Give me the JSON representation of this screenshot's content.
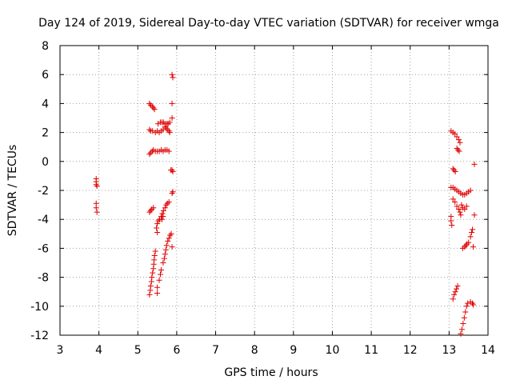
{
  "chart_data": {
    "type": "scatter",
    "title": "Day 124 of 2019, Sidereal Day-to-day VTEC variation (SDTVAR) for receiver wmga",
    "xlabel": "GPS time / hours",
    "ylabel": "SDTVAR / TECUs",
    "xlim": [
      3,
      14
    ],
    "ylim": [
      -12,
      8
    ],
    "xticks": [
      3,
      4,
      5,
      6,
      7,
      8,
      9,
      10,
      11,
      12,
      13,
      14
    ],
    "yticks": [
      -12,
      -10,
      -8,
      -6,
      -4,
      -2,
      0,
      2,
      4,
      6,
      8
    ],
    "grid": true,
    "marker": "plus",
    "color": "#e00000",
    "series": [
      {
        "name": "SDTVAR",
        "points": [
          [
            3.93,
            -1.2
          ],
          [
            3.93,
            -1.4
          ],
          [
            3.93,
            -1.6
          ],
          [
            3.95,
            -1.7
          ],
          [
            3.93,
            -2.9
          ],
          [
            3.93,
            -3.2
          ],
          [
            3.95,
            -3.5
          ],
          [
            5.3,
            4.0
          ],
          [
            5.33,
            3.9
          ],
          [
            5.37,
            3.8
          ],
          [
            5.4,
            3.7
          ],
          [
            5.43,
            3.6
          ],
          [
            5.3,
            2.2
          ],
          [
            5.33,
            2.1
          ],
          [
            5.38,
            2.1
          ],
          [
            5.45,
            2.0
          ],
          [
            5.5,
            2.1
          ],
          [
            5.55,
            2.0
          ],
          [
            5.6,
            2.1
          ],
          [
            5.65,
            2.2
          ],
          [
            5.52,
            2.6
          ],
          [
            5.58,
            2.7
          ],
          [
            5.62,
            2.7
          ],
          [
            5.66,
            2.7
          ],
          [
            5.7,
            2.6
          ],
          [
            5.75,
            2.6
          ],
          [
            5.78,
            2.6
          ],
          [
            5.82,
            2.7
          ],
          [
            5.7,
            2.4
          ],
          [
            5.73,
            2.3
          ],
          [
            5.76,
            2.2
          ],
          [
            5.8,
            2.1
          ],
          [
            5.82,
            2.0
          ],
          [
            5.3,
            0.5
          ],
          [
            5.33,
            0.6
          ],
          [
            5.37,
            0.7
          ],
          [
            5.4,
            0.8
          ],
          [
            5.45,
            0.7
          ],
          [
            5.5,
            0.7
          ],
          [
            5.55,
            0.7
          ],
          [
            5.6,
            0.8
          ],
          [
            5.65,
            0.7
          ],
          [
            5.7,
            0.8
          ],
          [
            5.75,
            0.8
          ],
          [
            5.8,
            0.7
          ],
          [
            5.88,
            6.0
          ],
          [
            5.9,
            5.8
          ],
          [
            5.88,
            4.0
          ],
          [
            5.88,
            3.0
          ],
          [
            5.85,
            -0.6
          ],
          [
            5.88,
            -0.6
          ],
          [
            5.9,
            -0.7
          ],
          [
            5.88,
            -2.2
          ],
          [
            5.9,
            -2.1
          ],
          [
            5.3,
            -3.5
          ],
          [
            5.33,
            -3.4
          ],
          [
            5.36,
            -3.3
          ],
          [
            5.4,
            -3.2
          ],
          [
            5.5,
            -4.3
          ],
          [
            5.53,
            -4.1
          ],
          [
            5.56,
            -4.0
          ],
          [
            5.48,
            -4.6
          ],
          [
            5.5,
            -4.9
          ],
          [
            5.6,
            -3.8
          ],
          [
            5.63,
            -3.6
          ],
          [
            5.66,
            -3.4
          ],
          [
            5.7,
            -3.2
          ],
          [
            5.73,
            -3.0
          ],
          [
            5.76,
            -2.9
          ],
          [
            5.8,
            -2.8
          ],
          [
            5.62,
            -4.0
          ],
          [
            5.65,
            -3.8
          ],
          [
            5.3,
            -9.2
          ],
          [
            5.32,
            -8.9
          ],
          [
            5.33,
            -8.6
          ],
          [
            5.35,
            -8.3
          ],
          [
            5.36,
            -8.0
          ],
          [
            5.38,
            -7.7
          ],
          [
            5.4,
            -7.4
          ],
          [
            5.41,
            -7.1
          ],
          [
            5.42,
            -6.8
          ],
          [
            5.43,
            -6.5
          ],
          [
            5.45,
            -6.2
          ],
          [
            5.5,
            -8.7
          ],
          [
            5.5,
            -9.1
          ],
          [
            5.55,
            -8.2
          ],
          [
            5.58,
            -7.8
          ],
          [
            5.6,
            -7.5
          ],
          [
            5.65,
            -7.0
          ],
          [
            5.68,
            -6.7
          ],
          [
            5.7,
            -6.4
          ],
          [
            5.72,
            -6.1
          ],
          [
            5.74,
            -5.8
          ],
          [
            5.77,
            -5.5
          ],
          [
            5.8,
            -5.3
          ],
          [
            5.83,
            -5.1
          ],
          [
            5.86,
            -5.0
          ],
          [
            5.88,
            -5.9
          ],
          [
            13.05,
            2.1
          ],
          [
            13.1,
            2.0
          ],
          [
            13.15,
            1.9
          ],
          [
            13.2,
            1.7
          ],
          [
            13.25,
            1.5
          ],
          [
            13.28,
            1.3
          ],
          [
            13.2,
            0.9
          ],
          [
            13.23,
            0.8
          ],
          [
            13.26,
            0.7
          ],
          [
            13.1,
            -0.5
          ],
          [
            13.13,
            -0.6
          ],
          [
            13.16,
            -0.7
          ],
          [
            13.05,
            -1.8
          ],
          [
            13.1,
            -1.8
          ],
          [
            13.15,
            -1.9
          ],
          [
            13.2,
            -2.0
          ],
          [
            13.25,
            -2.1
          ],
          [
            13.3,
            -2.2
          ],
          [
            13.35,
            -2.3
          ],
          [
            13.4,
            -2.3
          ],
          [
            13.45,
            -2.2
          ],
          [
            13.5,
            -2.1
          ],
          [
            13.55,
            -2.0
          ],
          [
            13.1,
            -2.6
          ],
          [
            13.15,
            -2.8
          ],
          [
            13.2,
            -3.1
          ],
          [
            13.25,
            -3.3
          ],
          [
            13.28,
            -3.5
          ],
          [
            13.3,
            -3.7
          ],
          [
            13.32,
            -3.0
          ],
          [
            13.35,
            -3.2
          ],
          [
            13.4,
            -3.3
          ],
          [
            13.45,
            -3.1
          ],
          [
            13.05,
            -3.8
          ],
          [
            13.05,
            -4.1
          ],
          [
            13.07,
            -4.4
          ],
          [
            13.35,
            -6.0
          ],
          [
            13.4,
            -5.9
          ],
          [
            13.43,
            -5.8
          ],
          [
            13.46,
            -5.7
          ],
          [
            13.5,
            -5.6
          ],
          [
            13.55,
            -5.2
          ],
          [
            13.58,
            -4.9
          ],
          [
            13.6,
            -4.7
          ],
          [
            13.62,
            -5.9
          ],
          [
            13.65,
            -3.7
          ],
          [
            13.65,
            -0.2
          ],
          [
            13.1,
            -9.5
          ],
          [
            13.13,
            -9.2
          ],
          [
            13.16,
            -9.0
          ],
          [
            13.19,
            -8.8
          ],
          [
            13.22,
            -8.6
          ],
          [
            13.3,
            -11.9
          ],
          [
            13.33,
            -11.6
          ],
          [
            13.36,
            -11.2
          ],
          [
            13.39,
            -10.8
          ],
          [
            13.42,
            -10.4
          ],
          [
            13.45,
            -10.0
          ],
          [
            13.48,
            -9.8
          ],
          [
            13.55,
            -9.7
          ],
          [
            13.6,
            -9.8
          ],
          [
            13.62,
            -9.9
          ]
        ]
      }
    ]
  }
}
